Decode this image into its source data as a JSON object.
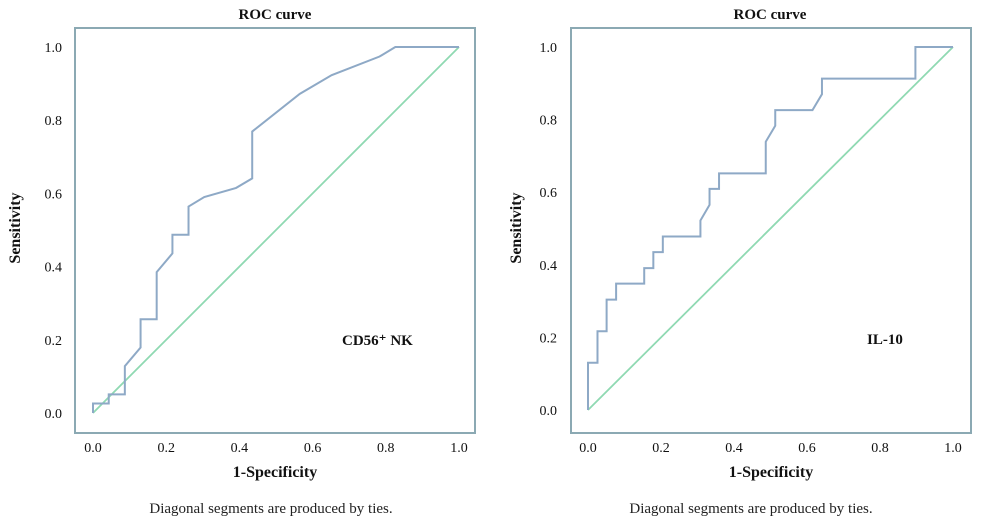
{
  "chart_data": [
    {
      "type": "line",
      "title": "ROC curve",
      "xlabel": "1-Specificity",
      "ylabel": "Sensitivity",
      "xlim": [
        0,
        1
      ],
      "ylim": [
        0,
        1
      ],
      "xticks": [
        "0.0",
        "0.2",
        "0.4",
        "0.6",
        "0.8",
        "1.0"
      ],
      "yticks": [
        "0.0",
        "0.2",
        "0.4",
        "0.6",
        "0.8",
        "1.0"
      ],
      "annotation": "CD56⁺ NK",
      "caption": "Diagonal segments are produced by ties.",
      "colors": {
        "roc": "#8ea9c6",
        "reference": "#8fd9b2"
      },
      "series": [
        {
          "points": [
            [
              0.0,
              0.0
            ],
            [
              0.0,
              0.026
            ],
            [
              0.043,
              0.026
            ],
            [
              0.043,
              0.051
            ],
            [
              0.087,
              0.051
            ],
            [
              0.087,
              0.128
            ],
            [
              0.13,
              0.179
            ],
            [
              0.13,
              0.256
            ],
            [
              0.174,
              0.256
            ],
            [
              0.174,
              0.385
            ],
            [
              0.217,
              0.436
            ],
            [
              0.217,
              0.487
            ],
            [
              0.261,
              0.487
            ],
            [
              0.261,
              0.564
            ],
            [
              0.304,
              0.59
            ],
            [
              0.391,
              0.615
            ],
            [
              0.435,
              0.641
            ],
            [
              0.435,
              0.769
            ],
            [
              0.565,
              0.872
            ],
            [
              0.652,
              0.923
            ],
            [
              0.783,
              0.974
            ],
            [
              0.826,
              1.0
            ],
            [
              1.0,
              1.0
            ]
          ]
        },
        {
          "points": [
            [
              0,
              0
            ],
            [
              1,
              1
            ]
          ]
        }
      ]
    },
    {
      "type": "line",
      "title": "ROC curve",
      "xlabel": "1-Specificity",
      "ylabel": "Sensitivity",
      "xlim": [
        0,
        1
      ],
      "ylim": [
        0,
        1
      ],
      "xticks": [
        "0.0",
        "0.2",
        "0.4",
        "0.6",
        "0.8",
        "1.0"
      ],
      "yticks": [
        "0.0",
        "0.2",
        "0.4",
        "0.6",
        "0.8",
        "1.0"
      ],
      "annotation": "IL-10",
      "caption": "Diagonal segments are produced by ties.",
      "colors": {
        "roc": "#8ea9c6",
        "reference": "#8fd9b2"
      },
      "series": [
        {
          "points": [
            [
              0.0,
              0.0
            ],
            [
              0.0,
              0.13
            ],
            [
              0.026,
              0.13
            ],
            [
              0.026,
              0.217
            ],
            [
              0.051,
              0.217
            ],
            [
              0.051,
              0.304
            ],
            [
              0.077,
              0.304
            ],
            [
              0.077,
              0.348
            ],
            [
              0.154,
              0.348
            ],
            [
              0.154,
              0.391
            ],
            [
              0.179,
              0.391
            ],
            [
              0.179,
              0.435
            ],
            [
              0.205,
              0.435
            ],
            [
              0.205,
              0.478
            ],
            [
              0.308,
              0.478
            ],
            [
              0.308,
              0.522
            ],
            [
              0.333,
              0.565
            ],
            [
              0.333,
              0.609
            ],
            [
              0.359,
              0.609
            ],
            [
              0.359,
              0.652
            ],
            [
              0.487,
              0.652
            ],
            [
              0.487,
              0.739
            ],
            [
              0.513,
              0.783
            ],
            [
              0.513,
              0.826
            ],
            [
              0.615,
              0.826
            ],
            [
              0.641,
              0.87
            ],
            [
              0.641,
              0.913
            ],
            [
              0.897,
              0.913
            ],
            [
              0.897,
              1.0
            ],
            [
              1.0,
              1.0
            ]
          ]
        },
        {
          "points": [
            [
              0,
              0
            ],
            [
              1,
              1
            ]
          ]
        }
      ]
    }
  ]
}
